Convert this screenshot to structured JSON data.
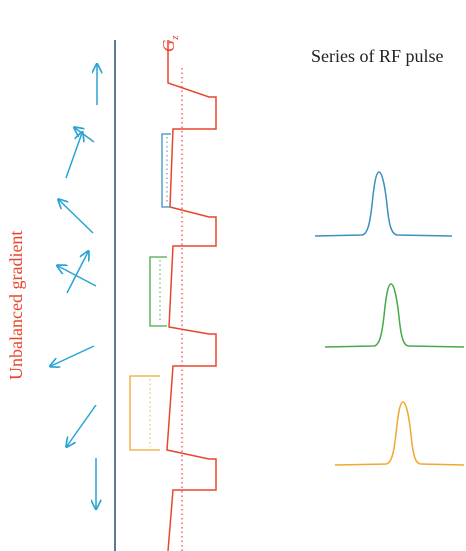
{
  "labels": {
    "axis_main": "G",
    "axis_sub": "z",
    "rf_title": "Series of RF pulse",
    "side_label": "Unbalanced gradient"
  },
  "colors": {
    "gradient": "#e8452c",
    "axis": "#2a4a6e",
    "arrows": "#2aa3d6",
    "pulse_blue": "#3c8fc0",
    "pulse_green": "#4aa84a",
    "pulse_orange": "#f0a830"
  }
}
